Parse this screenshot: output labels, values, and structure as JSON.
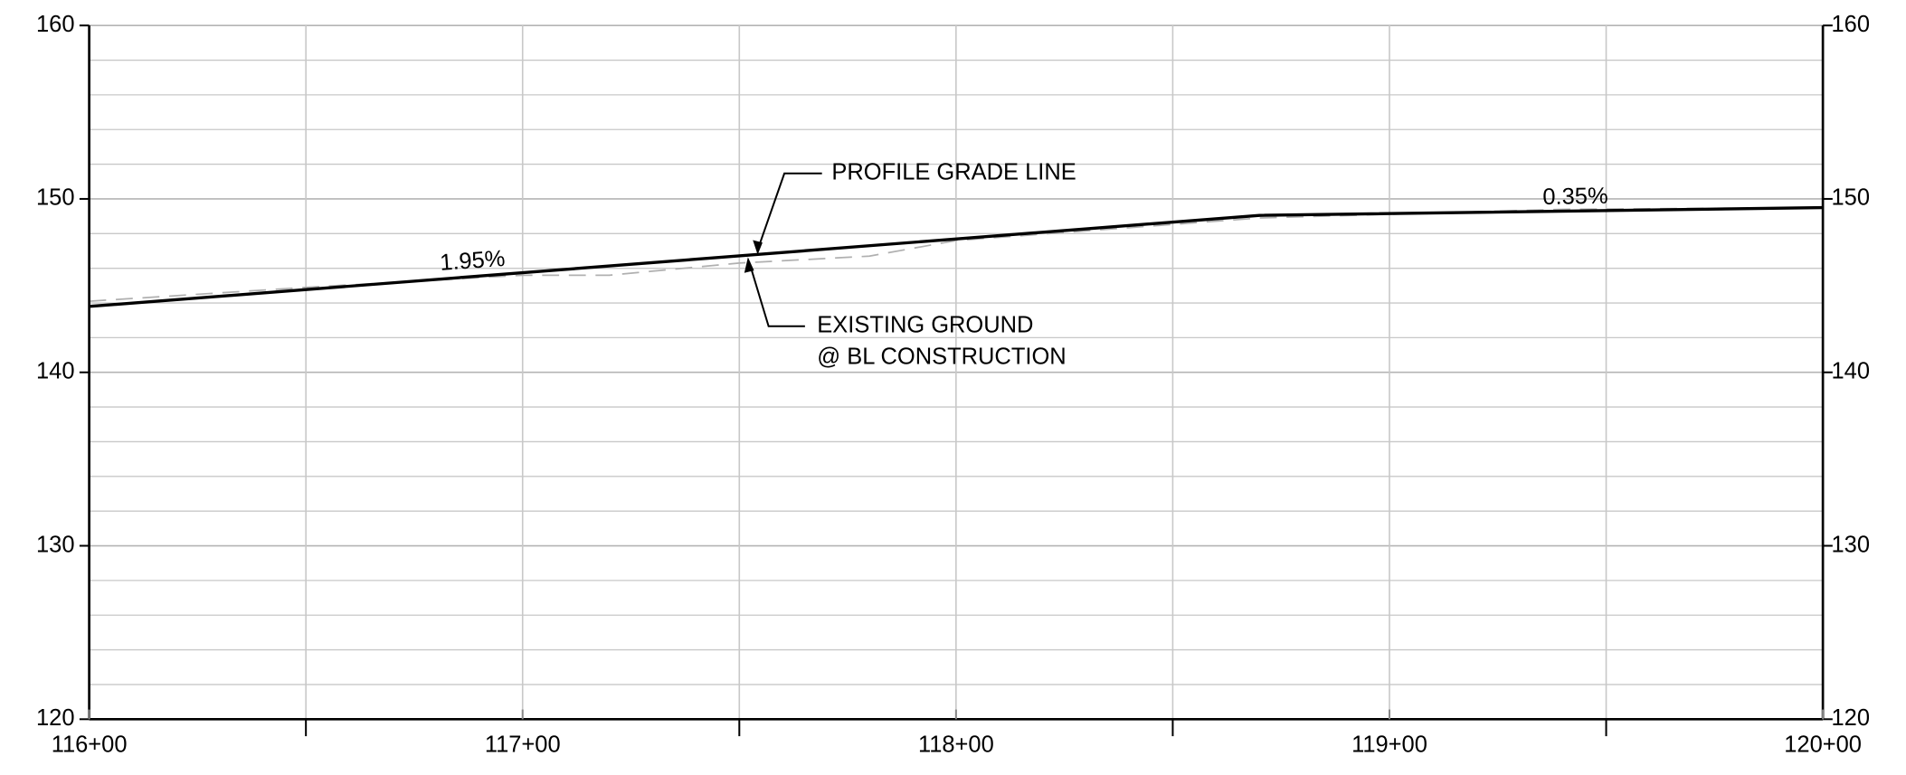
{
  "chart_data": {
    "type": "line",
    "xlim": [
      11600,
      12000
    ],
    "xticks": [
      {
        "value": 11600,
        "label": "116+00"
      },
      {
        "value": 11700,
        "label": "117+00"
      },
      {
        "value": 11800,
        "label": "118+00"
      },
      {
        "value": 11900,
        "label": "119+00"
      },
      {
        "value": 12000,
        "label": "120+00"
      }
    ],
    "xminor": [
      11650,
      11750,
      11850,
      11950
    ],
    "ylim": [
      120,
      160
    ],
    "yticks": [
      120,
      130,
      140,
      150,
      160
    ],
    "y2lim": [
      120,
      160
    ],
    "y2ticks": [
      120,
      130,
      140,
      150,
      160
    ],
    "yminor": [
      122,
      124,
      126,
      128,
      132,
      134,
      136,
      138,
      142,
      144,
      146,
      148,
      152,
      154,
      156,
      158
    ],
    "grid": true,
    "series": [
      {
        "color": "#000000",
        "dashed": false,
        "x": [
          11600,
          11870,
          12000
        ],
        "values": [
          143.8,
          149.05,
          149.5
        ]
      },
      {
        "color": "#b0b0b0",
        "dashed": true,
        "x": [
          11600,
          11650,
          11700,
          11720,
          11750,
          11780,
          11800,
          11870,
          11940,
          12000
        ],
        "values": [
          144.1,
          144.9,
          145.6,
          145.6,
          146.3,
          146.7,
          147.6,
          148.9,
          149.4,
          149.5
        ]
      }
    ],
    "annotations": {
      "grade1": "1.95%",
      "grade2": "0.35%",
      "pgl": "PROFILE GRADE LINE",
      "eg1": "EXISTING GROUND",
      "eg2": "@ BL CONSTRUCTION"
    }
  }
}
